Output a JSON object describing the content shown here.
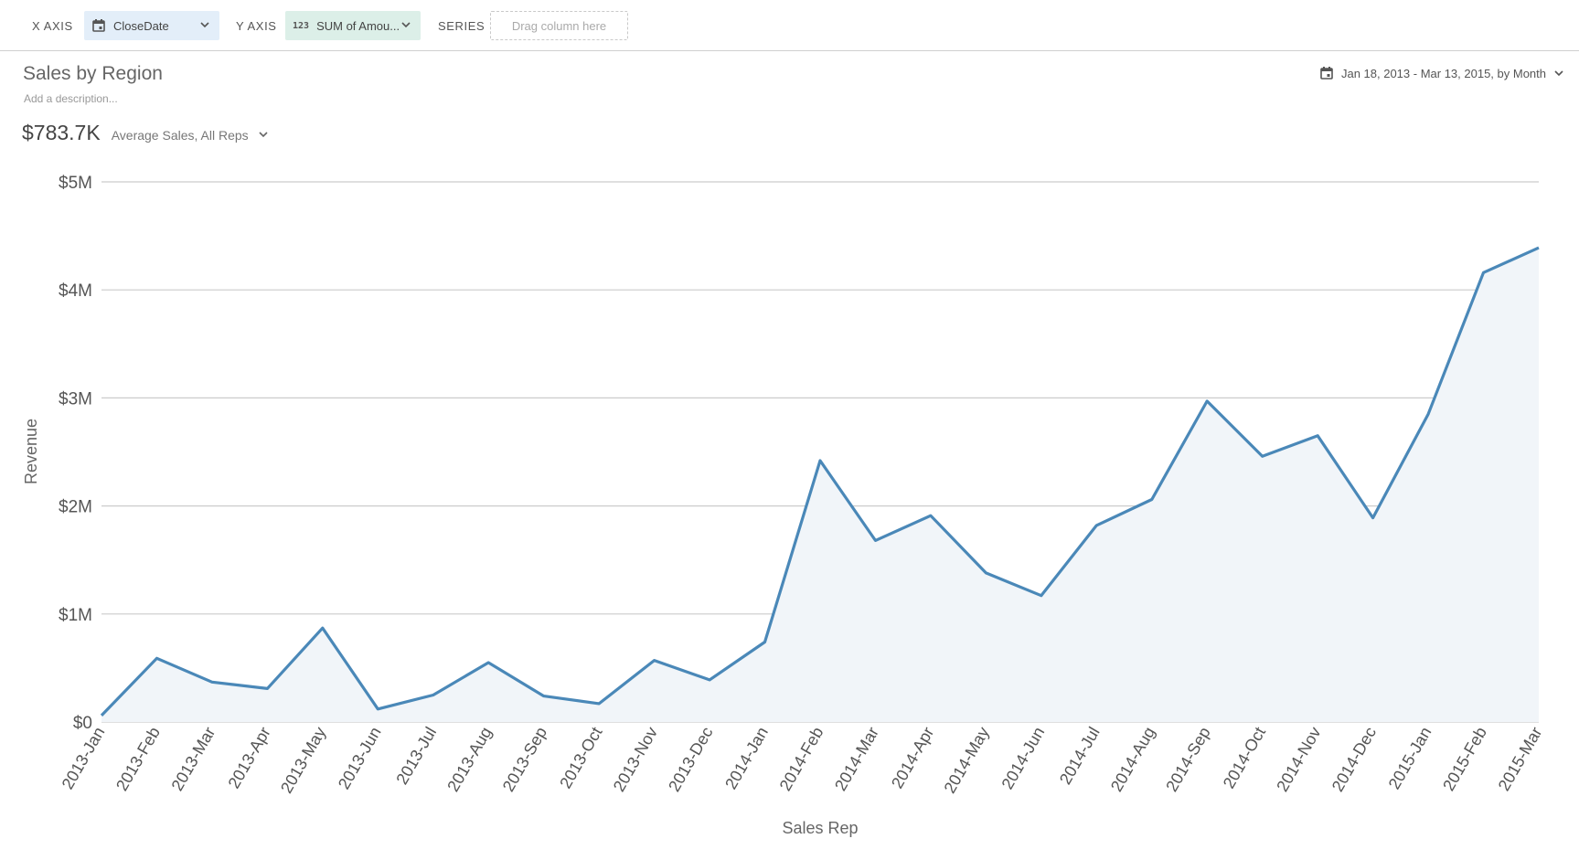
{
  "toolbar": {
    "x_axis_label": "X AXIS",
    "x_axis_value": "CloseDate",
    "y_axis_label": "Y AXIS",
    "y_axis_type_glyph": "123",
    "y_axis_value": "SUM of Amou...",
    "series_label": "SERIES",
    "series_placeholder": "Drag column here"
  },
  "header": {
    "title": "Sales by Region",
    "description_placeholder": "Add a description...",
    "date_range": "Jan 18, 2013 - Mar 13, 2015, by Month"
  },
  "metric": {
    "value": "$783.7K",
    "label": "Average Sales, All Reps"
  },
  "colors": {
    "line": "#4a88b8",
    "area_fill": "#f1f5f9",
    "grid": "#cccccc",
    "x_pill_bg": "#e3eef9",
    "y_pill_bg": "#dcefe8"
  },
  "icons": {
    "x_axis": "calendar-icon",
    "y_axis": "number-type-icon",
    "date_range": "calendar-icon",
    "dropdowns": "chevron-down-icon"
  },
  "chart_data": {
    "type": "area",
    "xlabel": "Sales Rep",
    "ylabel": "Revenue",
    "ylim": [
      0,
      5000000
    ],
    "yticks": [
      "$0",
      "$1M",
      "$2M",
      "$3M",
      "$4M",
      "$5M"
    ],
    "grid": true,
    "categories": [
      "2013-Jan",
      "2013-Feb",
      "2013-Mar",
      "2013-Apr",
      "2013-May",
      "2013-Jun",
      "2013-Jul",
      "2013-Aug",
      "2013-Sep",
      "2013-Oct",
      "2013-Nov",
      "2013-Dec",
      "2014-Jan",
      "2014-Feb",
      "2014-Mar",
      "2014-Apr",
      "2014-May",
      "2014-Jun",
      "2014-Jul",
      "2014-Aug",
      "2014-Sep",
      "2014-Oct",
      "2014-Nov",
      "2014-Dec",
      "2015-Jan",
      "2015-Feb",
      "2015-Mar"
    ],
    "values": [
      60000,
      590000,
      370000,
      310000,
      870000,
      120000,
      250000,
      550000,
      240000,
      170000,
      570000,
      390000,
      740000,
      2420000,
      1680000,
      1910000,
      1380000,
      1170000,
      1820000,
      2060000,
      2970000,
      2460000,
      2650000,
      1890000,
      2850000,
      4160000,
      4390000
    ]
  }
}
